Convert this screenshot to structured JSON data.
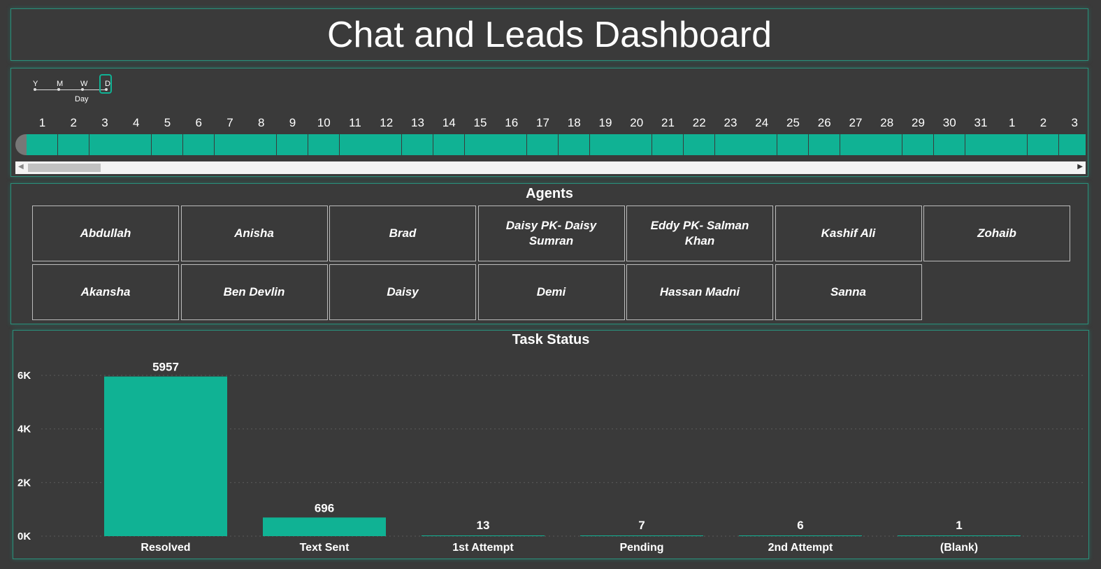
{
  "title": "Chat and Leads Dashboard",
  "timeline": {
    "granularity": [
      "Y",
      "M",
      "W",
      "D"
    ],
    "selected": "D",
    "caption": "Day",
    "days": [
      "1",
      "2",
      "3",
      "4",
      "5",
      "6",
      "7",
      "8",
      "9",
      "10",
      "11",
      "12",
      "13",
      "14",
      "15",
      "16",
      "17",
      "18",
      "19",
      "20",
      "21",
      "22",
      "23",
      "24",
      "25",
      "26",
      "27",
      "28",
      "29",
      "30",
      "31",
      "1",
      "2",
      "3"
    ]
  },
  "agents": {
    "title": "Agents",
    "items": [
      "Abdullah",
      "Anisha",
      "Brad",
      "Daisy PK- Daisy Sumran",
      "Eddy PK- Salman Khan",
      "Kashif Ali",
      "Zohaib",
      "Akansha",
      "Ben Devlin",
      "Daisy",
      "Demi",
      "Hassan Madni",
      "Sanna"
    ]
  },
  "chart_data": {
    "type": "bar",
    "title": "Task Status",
    "categories": [
      "Resolved",
      "Text Sent",
      "1st Attempt",
      "Pending",
      "2nd Attempt",
      "(Blank)"
    ],
    "values": [
      5957,
      696,
      13,
      7,
      6,
      1
    ],
    "yticks": [
      "0K",
      "2K",
      "4K",
      "6K"
    ],
    "ylim": [
      0,
      6000
    ],
    "grid": true,
    "bar_color": "#10b294"
  },
  "colors": {
    "accent": "#10b294",
    "background": "#3a3a3a"
  }
}
